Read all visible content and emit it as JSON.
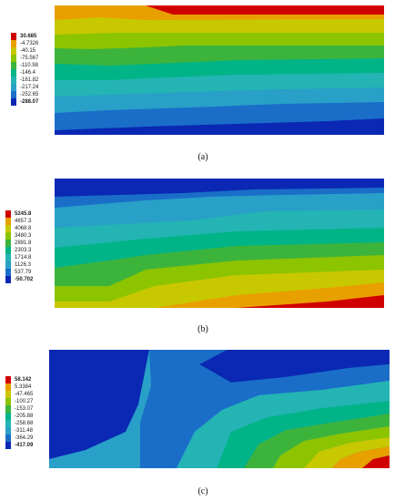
{
  "figures": [
    {
      "id": "a",
      "caption": "(a)",
      "legend": {
        "labels": [
          "30.685",
          "-4.7326",
          "-40.15",
          "-75.567",
          "-110.98",
          "-146.4",
          "-181.82",
          "-217.24",
          "-252.65",
          "-288.07"
        ],
        "colors": [
          "#d10000",
          "#e8a000",
          "#c8c800",
          "#8cc400",
          "#3cb43c",
          "#00b487",
          "#24b4b4",
          "#28a0c8",
          "#1a6ec8",
          "#0a28b4"
        ]
      }
    },
    {
      "id": "b",
      "caption": "(b)",
      "legend": {
        "labels": [
          "5245.8",
          "4657.3",
          "4068.8",
          "3480.3",
          "2891.8",
          "2303.3",
          "1714.8",
          "1126.3",
          "537.79",
          "-50.702"
        ],
        "colors": [
          "#d10000",
          "#e8a000",
          "#c8c800",
          "#8cc400",
          "#3cb43c",
          "#00b487",
          "#24b4b4",
          "#28a0c8",
          "#1a6ec8",
          "#0a28b4"
        ]
      }
    },
    {
      "id": "c",
      "caption": "(c)",
      "legend": {
        "labels": [
          "58.142",
          "5.3384",
          "-47.465",
          "-100.27",
          "-153.07",
          "-205.88",
          "-258.68",
          "-311.48",
          "-364.29",
          "-417.09"
        ],
        "colors": [
          "#d10000",
          "#e8a000",
          "#c8c800",
          "#8cc400",
          "#3cb43c",
          "#00b487",
          "#24b4b4",
          "#28a0c8",
          "#1a6ec8",
          "#0a28b4"
        ]
      }
    }
  ]
}
